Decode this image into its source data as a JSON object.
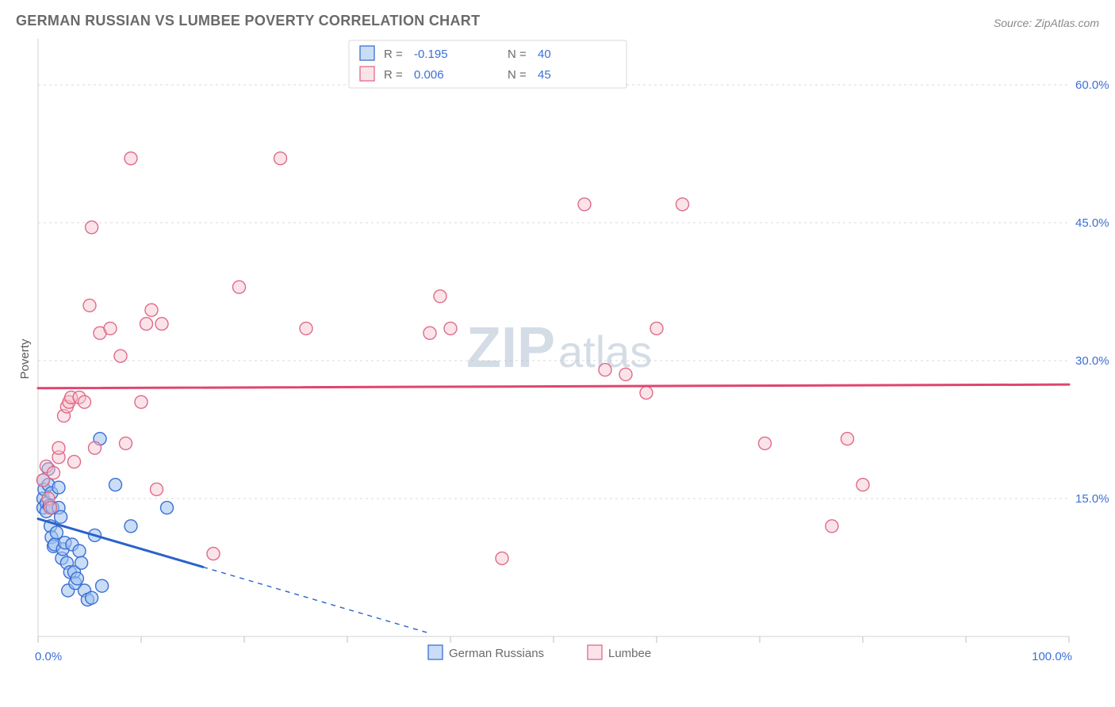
{
  "header": {
    "title": "GERMAN RUSSIAN VS LUMBEE POVERTY CORRELATION CHART",
    "source_label": "Source: ",
    "source_name": "ZipAtlas.com"
  },
  "axes": {
    "ylabel": "Poverty",
    "x": {
      "min": 0,
      "max": 100,
      "ticks": [
        0,
        10,
        20,
        30,
        40,
        50,
        60,
        70,
        80,
        90,
        100
      ],
      "label_min": "0.0%",
      "label_max": "100.0%"
    },
    "y": {
      "min": 0,
      "max": 65,
      "grid": [
        15,
        30,
        45,
        60
      ],
      "labels": [
        "15.0%",
        "30.0%",
        "45.0%",
        "60.0%"
      ]
    }
  },
  "chart": {
    "type": "scatter",
    "background": "#ffffff",
    "grid_color": "#d8d8d8",
    "axis_color": "#d0d0d0",
    "marker_radius": 8,
    "marker_stroke_width": 1.4
  },
  "series": [
    {
      "id": "german_russians",
      "label": "German Russians",
      "color_fill": "#9fc1ef",
      "color_stroke": "#3b6fd6",
      "fill_opacity": 0.55,
      "r_value": "-0.195",
      "n_value": "40",
      "trend": {
        "color": "#2a62c9",
        "y_at_x0": 12.8,
        "y_at_x100": -20.0,
        "solid_until_x": 16,
        "dash_until_x": 38
      },
      "points": [
        [
          0.5,
          17.0
        ],
        [
          0.5,
          15.0
        ],
        [
          0.5,
          14.0
        ],
        [
          0.6,
          16.0
        ],
        [
          0.8,
          14.5
        ],
        [
          0.8,
          13.6
        ],
        [
          1.0,
          18.2
        ],
        [
          1.0,
          16.5
        ],
        [
          1.1,
          14.2
        ],
        [
          1.2,
          12.0
        ],
        [
          1.3,
          10.8
        ],
        [
          1.3,
          15.6
        ],
        [
          1.4,
          14.0
        ],
        [
          1.5,
          9.8
        ],
        [
          1.6,
          10.0
        ],
        [
          1.8,
          11.3
        ],
        [
          2.0,
          16.2
        ],
        [
          2.0,
          14.0
        ],
        [
          2.2,
          13.0
        ],
        [
          2.3,
          8.5
        ],
        [
          2.4,
          9.5
        ],
        [
          2.6,
          10.2
        ],
        [
          2.8,
          8.0
        ],
        [
          2.9,
          5.0
        ],
        [
          3.1,
          7.0
        ],
        [
          3.3,
          10.0
        ],
        [
          3.5,
          7.0
        ],
        [
          3.6,
          5.8
        ],
        [
          3.8,
          6.3
        ],
        [
          4.0,
          9.3
        ],
        [
          4.2,
          8.0
        ],
        [
          4.5,
          5.0
        ],
        [
          4.8,
          4.0
        ],
        [
          5.2,
          4.2
        ],
        [
          5.5,
          11.0
        ],
        [
          6.0,
          21.5
        ],
        [
          6.2,
          5.5
        ],
        [
          7.5,
          16.5
        ],
        [
          9.0,
          12.0
        ],
        [
          12.5,
          14.0
        ]
      ]
    },
    {
      "id": "lumbee",
      "label": "Lumbee",
      "color_fill": "#f6c3ce",
      "color_stroke": "#e06a88",
      "fill_opacity": 0.45,
      "r_value": "0.006",
      "n_value": "45",
      "trend": {
        "color": "#e0456f",
        "y_at_x0": 27.0,
        "y_at_x100": 27.4,
        "solid_until_x": 100,
        "dash_until_x": 100
      },
      "points": [
        [
          0.5,
          17.0
        ],
        [
          0.8,
          18.5
        ],
        [
          1.0,
          15.0
        ],
        [
          1.2,
          14.0
        ],
        [
          1.5,
          17.8
        ],
        [
          2.0,
          19.5
        ],
        [
          2.0,
          20.5
        ],
        [
          2.5,
          24.0
        ],
        [
          2.8,
          25.0
        ],
        [
          3.0,
          25.5
        ],
        [
          3.2,
          26.0
        ],
        [
          3.5,
          19.0
        ],
        [
          4.0,
          26.0
        ],
        [
          4.5,
          25.5
        ],
        [
          5.0,
          36.0
        ],
        [
          5.2,
          44.5
        ],
        [
          5.5,
          20.5
        ],
        [
          6.0,
          33.0
        ],
        [
          7.0,
          33.5
        ],
        [
          8.0,
          30.5
        ],
        [
          8.5,
          21.0
        ],
        [
          9.0,
          52.0
        ],
        [
          10.0,
          25.5
        ],
        [
          10.5,
          34.0
        ],
        [
          11.0,
          35.5
        ],
        [
          11.5,
          16.0
        ],
        [
          12.0,
          34.0
        ],
        [
          17.0,
          9.0
        ],
        [
          19.5,
          38.0
        ],
        [
          23.5,
          52.0
        ],
        [
          26.0,
          33.5
        ],
        [
          38.0,
          33.0
        ],
        [
          39.0,
          37.0
        ],
        [
          40.0,
          33.5
        ],
        [
          45.0,
          8.5
        ],
        [
          53.0,
          47.0
        ],
        [
          55.0,
          29.0
        ],
        [
          57.0,
          28.5
        ],
        [
          59.0,
          26.5
        ],
        [
          60.0,
          33.5
        ],
        [
          62.5,
          47.0
        ],
        [
          70.5,
          21.0
        ],
        [
          77.0,
          12.0
        ],
        [
          80.0,
          16.5
        ],
        [
          78.5,
          21.5
        ]
      ]
    }
  ],
  "legend_top": {
    "r_label": "R =",
    "n_label": "N ="
  },
  "watermark": {
    "a": "ZIP",
    "b": "atlas"
  }
}
